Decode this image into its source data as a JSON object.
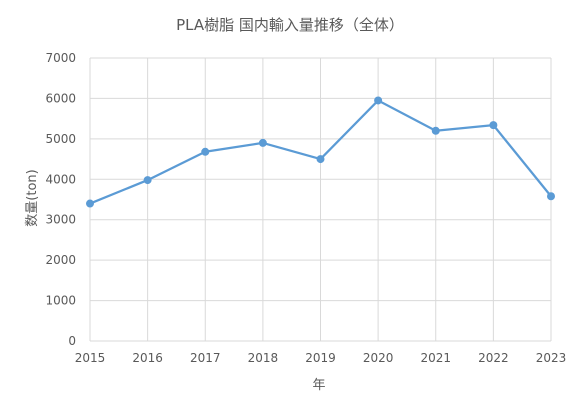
{
  "chart_data": {
    "type": "line",
    "title": "PLA樹脂 国内輸入量推移（全体）",
    "xlabel": "年",
    "ylabel": "数量(ton)",
    "categories": [
      "2015",
      "2016",
      "2017",
      "2018",
      "2019",
      "2020",
      "2021",
      "2022",
      "2023"
    ],
    "series": [
      {
        "values": [
          3400,
          3980,
          4680,
          4900,
          4500,
          5950,
          5200,
          5340,
          3580
        ]
      }
    ],
    "ylim": [
      0,
      7000
    ],
    "yticks": [
      0,
      1000,
      2000,
      3000,
      4000,
      5000,
      6000,
      7000
    ],
    "grid": true,
    "legend": "none",
    "colors": {
      "series": "#5b9bd5",
      "grid": "#d9d9d9",
      "text": "#595959"
    }
  }
}
